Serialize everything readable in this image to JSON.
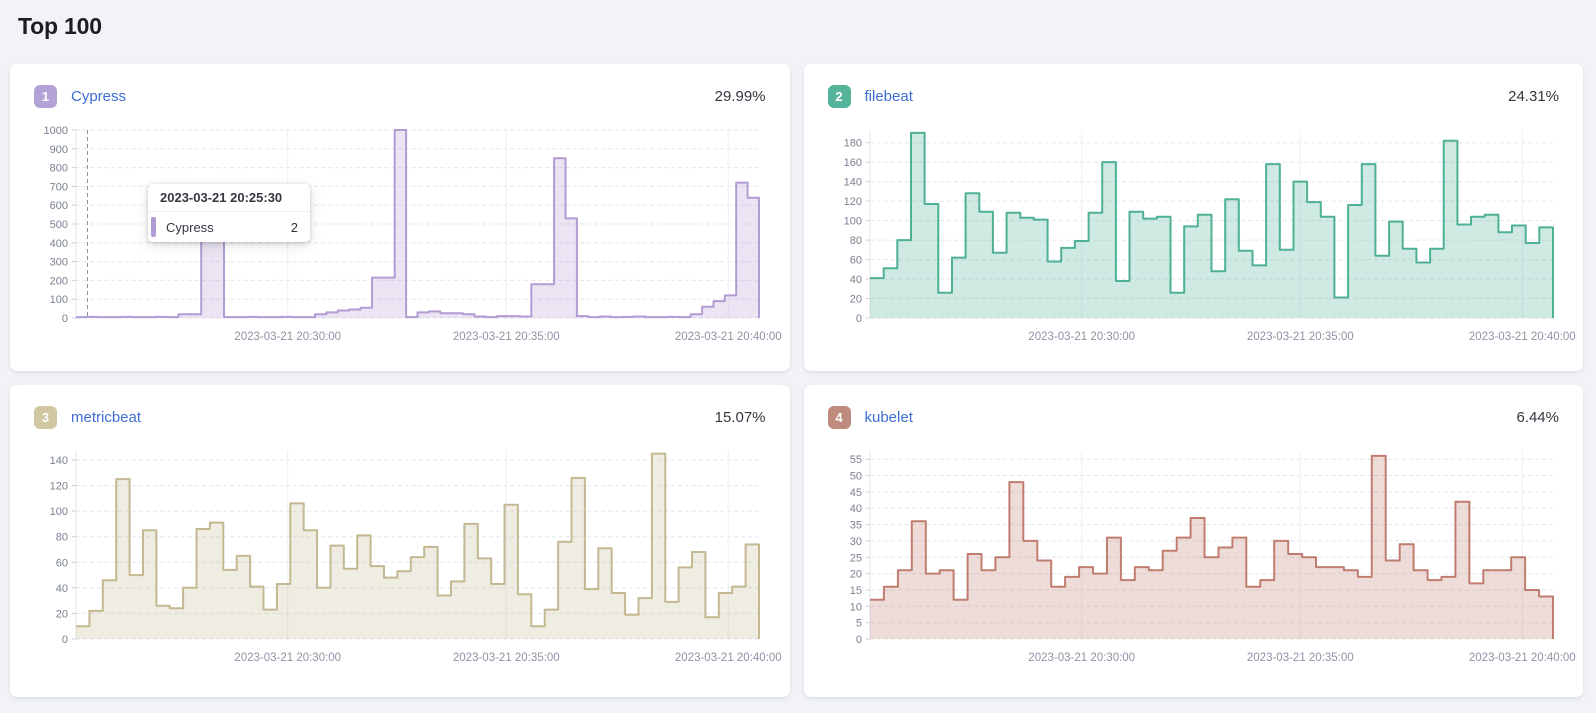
{
  "title": "Top 100",
  "chart_data": [
    {
      "type": "area",
      "rank": "1",
      "name": "Cypress",
      "percent": "29.99%",
      "colors": {
        "badge": "#b3a2d6",
        "line": "#b19cd4"
      },
      "ylim": [
        0,
        1000
      ],
      "y_ticks": [
        0,
        100,
        200,
        300,
        400,
        500,
        600,
        700,
        800,
        900,
        1000
      ],
      "ymax": 1000,
      "x_labels": [
        "2023-03-21 20:30:00",
        "2023-03-21 20:35:00",
        "2023-03-21 20:40:00"
      ],
      "values": [
        5,
        6,
        5,
        5,
        6,
        5,
        5,
        6,
        5,
        20,
        20,
        480,
        480,
        5,
        5,
        6,
        5,
        5,
        6,
        5,
        5,
        20,
        30,
        40,
        45,
        55,
        215,
        215,
        1000,
        5,
        30,
        35,
        25,
        25,
        20,
        8,
        5,
        10,
        10,
        8,
        180,
        180,
        850,
        530,
        10,
        5,
        8,
        5,
        6,
        8,
        5,
        5,
        6,
        5,
        20,
        60,
        90,
        120,
        720,
        640
      ],
      "tooltip": {
        "title": "2023-03-21 20:25:30",
        "series": "Cypress",
        "value": "2"
      }
    },
    {
      "type": "area",
      "rank": "2",
      "name": "filebeat",
      "percent": "24.31%",
      "colors": {
        "badge": "#54b399",
        "line": "#4eb095"
      },
      "ylim": [
        0,
        180
      ],
      "y_ticks": [
        0,
        20,
        40,
        60,
        80,
        100,
        120,
        140,
        160,
        180
      ],
      "ymax": 193,
      "x_labels": [
        "2023-03-21 20:30:00",
        "2023-03-21 20:35:00",
        "2023-03-21 20:40:00"
      ],
      "values": [
        41,
        51,
        80,
        190,
        117,
        26,
        62,
        128,
        109,
        67,
        108,
        103,
        101,
        58,
        72,
        79,
        108,
        160,
        38,
        109,
        102,
        104,
        26,
        94,
        106,
        48,
        122,
        69,
        54,
        158,
        70,
        140,
        119,
        104,
        21,
        116,
        158,
        64,
        99,
        71,
        57,
        71,
        182,
        96,
        104,
        106,
        88,
        95,
        77,
        93
      ],
      "tooltip": null
    },
    {
      "type": "area",
      "rank": "3",
      "name": "metricbeat",
      "percent": "15.07%",
      "colors": {
        "badge": "#d2c7a3",
        "line": "#c4b892"
      },
      "ylim": [
        0,
        140
      ],
      "y_ticks": [
        0,
        20,
        40,
        60,
        80,
        100,
        120,
        140
      ],
      "ymax": 147,
      "x_labels": [
        "2023-03-21 20:30:00",
        "2023-03-21 20:35:00",
        "2023-03-21 20:40:00"
      ],
      "values": [
        10,
        22,
        46,
        125,
        50,
        85,
        26,
        24,
        40,
        86,
        91,
        54,
        65,
        41,
        23,
        43,
        106,
        85,
        40,
        73,
        55,
        81,
        57,
        48,
        53,
        64,
        72,
        34,
        45,
        90,
        63,
        43,
        105,
        35,
        10,
        23,
        76,
        126,
        39,
        71,
        36,
        19,
        32,
        145,
        29,
        56,
        68,
        17,
        36,
        41,
        74
      ],
      "tooltip": null
    },
    {
      "type": "area",
      "rank": "4",
      "name": "kubelet",
      "percent": "6.44%",
      "colors": {
        "badge": "#bf8b7f",
        "line": "#c07d6f"
      },
      "ylim": [
        0,
        55
      ],
      "y_ticks": [
        0,
        5,
        10,
        15,
        20,
        25,
        30,
        35,
        40,
        45,
        50,
        55
      ],
      "ymax": 57.5,
      "x_labels": [
        "2023-03-21 20:30:00",
        "2023-03-21 20:35:00",
        "2023-03-21 20:40:00"
      ],
      "values": [
        12,
        16,
        21,
        36,
        20,
        21,
        12,
        26,
        21,
        25,
        48,
        30,
        24,
        16,
        19,
        22,
        20,
        31,
        18,
        22,
        21,
        27,
        31,
        37,
        25,
        28,
        31,
        16,
        18,
        30,
        26,
        25,
        22,
        22,
        21,
        19,
        56,
        24,
        29,
        21,
        18,
        19,
        42,
        17,
        21,
        21,
        25,
        15,
        13
      ],
      "tooltip": null
    }
  ]
}
